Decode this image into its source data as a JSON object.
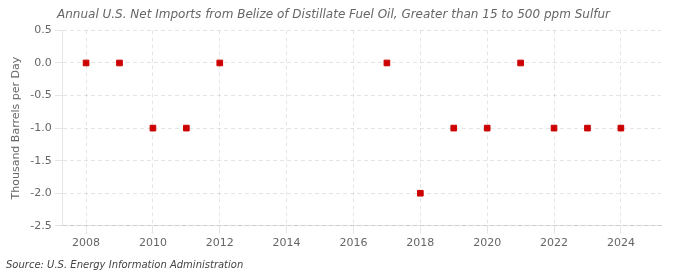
{
  "chart_data": {
    "type": "scatter",
    "title": "Annual U.S. Net Imports from Belize of Distillate Fuel Oil, Greater than 15 to 500 ppm Sulfur",
    "ylabel": "Thousand Barrels per Day",
    "annotation": "Source: U.S. Energy Information Administration",
    "x": [
      2008,
      2009,
      2010,
      2011,
      2012,
      2013,
      2014,
      2015,
      2016,
      2017,
      2018,
      2019,
      2020,
      2021,
      2022,
      2023,
      2024
    ],
    "values": [
      0,
      0,
      -1,
      -1,
      0,
      null,
      null,
      null,
      null,
      0,
      -2,
      -1,
      -1,
      0,
      -1,
      -1,
      -1
    ],
    "color": "#cc0000",
    "marker": "square",
    "xlim": [
      2007.3,
      2025.2
    ],
    "xticks": [
      2008,
      2010,
      2012,
      2014,
      2016,
      2018,
      2020,
      2022,
      2024
    ],
    "ylim": [
      -2.5,
      0.5
    ],
    "yticks": [
      0.5,
      {
        "value": 0,
        "label": "0.0"
      },
      -0.5,
      {
        "value": -1,
        "label": "-1.0"
      },
      -1.5,
      {
        "value": -2,
        "label": "-2.0"
      },
      -2.5
    ],
    "grid": true
  }
}
